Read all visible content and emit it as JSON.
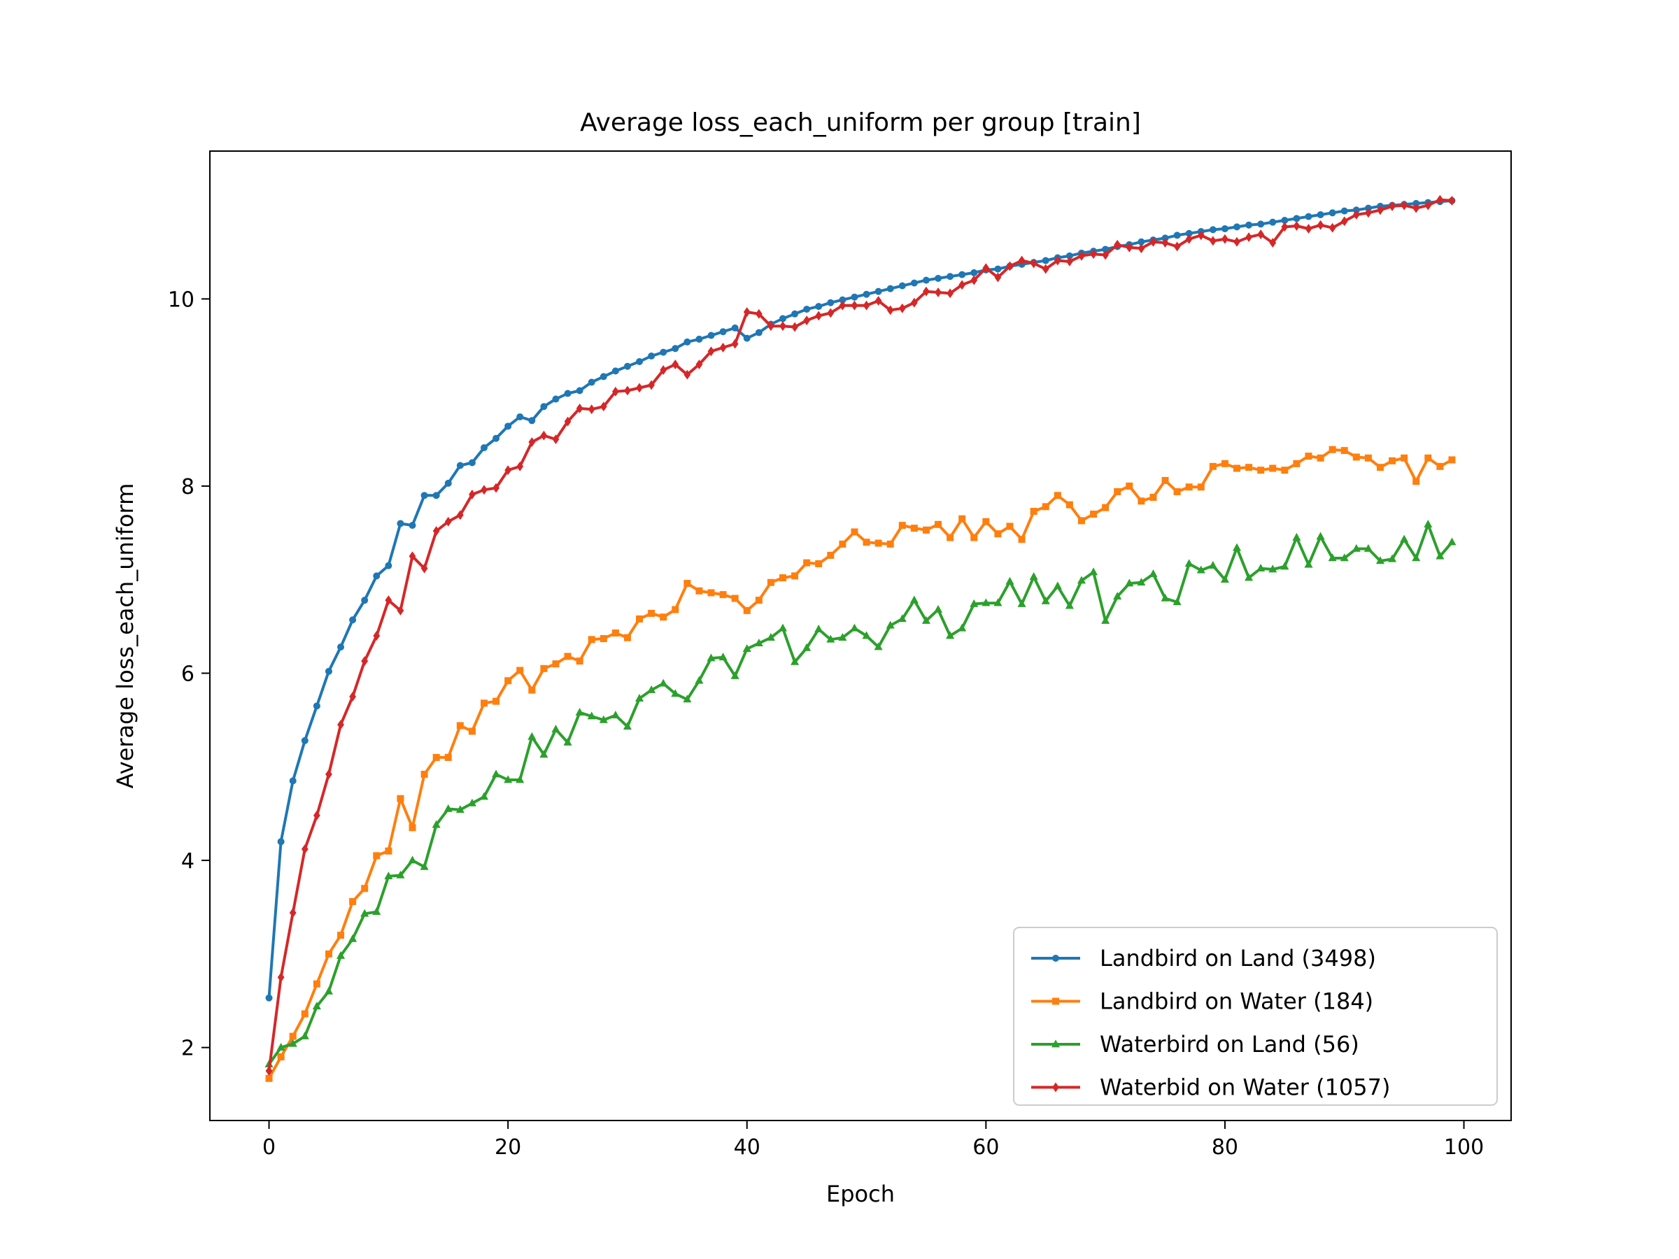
{
  "chart_data": {
    "type": "line",
    "title": "Average loss_each_uniform per group [train]",
    "xlabel": "Epoch",
    "ylabel": "Average loss_each_uniform",
    "xlim": [
      -4.95,
      103.95
    ],
    "ylim": [
      1.22,
      11.58
    ],
    "xticks": [
      0,
      20,
      40,
      60,
      80,
      100
    ],
    "yticks": [
      2,
      4,
      6,
      8,
      10
    ],
    "grid": false,
    "legend_position": "lower-right",
    "series": [
      {
        "name": "Landbird on Land (3498)",
        "color": "#1f77b4",
        "marker": "circle",
        "values": [
          2.53,
          4.2,
          4.85,
          5.28,
          5.65,
          6.02,
          6.28,
          6.57,
          6.78,
          7.04,
          7.15,
          7.6,
          7.58,
          7.9,
          7.9,
          8.03,
          8.22,
          8.25,
          8.41,
          8.51,
          8.64,
          8.74,
          8.7,
          8.85,
          8.93,
          8.99,
          9.02,
          9.11,
          9.17,
          9.23,
          9.28,
          9.33,
          9.39,
          9.43,
          9.47,
          9.54,
          9.57,
          9.61,
          9.65,
          9.69,
          9.58,
          9.64,
          9.73,
          9.79,
          9.84,
          9.89,
          9.92,
          9.96,
          9.99,
          10.02,
          10.05,
          10.08,
          10.11,
          10.14,
          10.17,
          10.2,
          10.22,
          10.24,
          10.26,
          10.28,
          10.31,
          10.32,
          10.35,
          10.37,
          10.39,
          10.41,
          10.44,
          10.46,
          10.49,
          10.51,
          10.53,
          10.56,
          10.58,
          10.61,
          10.63,
          10.65,
          10.68,
          10.7,
          10.72,
          10.74,
          10.75,
          10.77,
          10.79,
          10.8,
          10.82,
          10.84,
          10.86,
          10.88,
          10.9,
          10.92,
          10.94,
          10.95,
          10.97,
          10.99,
          11.0,
          11.01,
          11.02,
          11.03,
          11.04,
          11.05
        ]
      },
      {
        "name": "Landbird on Water (184)",
        "color": "#ff7f0e",
        "marker": "square",
        "values": [
          1.67,
          1.9,
          2.12,
          2.36,
          2.68,
          3.0,
          3.2,
          3.56,
          3.7,
          4.05,
          4.1,
          4.66,
          4.35,
          4.92,
          5.1,
          5.1,
          5.44,
          5.38,
          5.68,
          5.7,
          5.92,
          6.03,
          5.82,
          6.05,
          6.1,
          6.18,
          6.13,
          6.36,
          6.37,
          6.43,
          6.38,
          6.58,
          6.64,
          6.6,
          6.68,
          6.96,
          6.88,
          6.86,
          6.84,
          6.8,
          6.67,
          6.78,
          6.97,
          7.02,
          7.04,
          7.18,
          7.17,
          7.26,
          7.38,
          7.51,
          7.4,
          7.39,
          7.38,
          7.58,
          7.55,
          7.53,
          7.59,
          7.45,
          7.65,
          7.45,
          7.62,
          7.49,
          7.57,
          7.43,
          7.73,
          7.78,
          7.9,
          7.8,
          7.63,
          7.7,
          7.77,
          7.94,
          8.0,
          7.84,
          7.88,
          8.06,
          7.94,
          7.99,
          7.99,
          8.21,
          8.24,
          8.19,
          8.2,
          8.17,
          8.19,
          8.17,
          8.24,
          8.32,
          8.3,
          8.39,
          8.38,
          8.31,
          8.3,
          8.2,
          8.27,
          8.3,
          8.05,
          8.3,
          8.21,
          8.28
        ]
      },
      {
        "name": "Waterbird on Land (56)",
        "color": "#2ca02c",
        "marker": "triangle",
        "values": [
          1.82,
          2.0,
          2.04,
          2.12,
          2.44,
          2.6,
          2.98,
          3.16,
          3.43,
          3.45,
          3.83,
          3.84,
          4.0,
          3.93,
          4.38,
          4.55,
          4.54,
          4.61,
          4.68,
          4.92,
          4.86,
          4.86,
          5.32,
          5.13,
          5.4,
          5.26,
          5.58,
          5.54,
          5.5,
          5.55,
          5.43,
          5.73,
          5.82,
          5.89,
          5.78,
          5.72,
          5.92,
          6.16,
          6.17,
          5.97,
          6.26,
          6.32,
          6.38,
          6.48,
          6.12,
          6.27,
          6.47,
          6.36,
          6.38,
          6.48,
          6.4,
          6.28,
          6.51,
          6.58,
          6.78,
          6.56,
          6.68,
          6.4,
          6.48,
          6.74,
          6.75,
          6.75,
          6.98,
          6.74,
          7.03,
          6.77,
          6.93,
          6.72,
          6.99,
          7.08,
          6.56,
          6.82,
          6.96,
          6.97,
          7.06,
          6.8,
          6.76,
          7.17,
          7.1,
          7.15,
          7.0,
          7.34,
          7.02,
          7.12,
          7.11,
          7.14,
          7.45,
          7.16,
          7.46,
          7.23,
          7.23,
          7.33,
          7.33,
          7.2,
          7.22,
          7.43,
          7.23,
          7.59,
          7.25,
          7.4
        ]
      },
      {
        "name": "Waterbid on Water (1057)",
        "color": "#d62728",
        "marker": "diamond",
        "values": [
          1.75,
          2.75,
          3.44,
          4.12,
          4.48,
          4.92,
          5.45,
          5.75,
          6.13,
          6.4,
          6.78,
          6.67,
          7.25,
          7.12,
          7.52,
          7.62,
          7.69,
          7.91,
          7.96,
          7.98,
          8.17,
          8.21,
          8.47,
          8.54,
          8.5,
          8.69,
          8.83,
          8.82,
          8.85,
          9.01,
          9.02,
          9.05,
          9.08,
          9.24,
          9.3,
          9.19,
          9.3,
          9.44,
          9.48,
          9.52,
          9.86,
          9.84,
          9.71,
          9.71,
          9.7,
          9.77,
          9.82,
          9.85,
          9.93,
          9.93,
          9.93,
          9.98,
          9.88,
          9.9,
          9.96,
          10.08,
          10.07,
          10.06,
          10.15,
          10.2,
          10.33,
          10.23,
          10.35,
          10.41,
          10.38,
          10.32,
          10.41,
          10.4,
          10.46,
          10.48,
          10.47,
          10.58,
          10.55,
          10.54,
          10.61,
          10.6,
          10.56,
          10.64,
          10.68,
          10.62,
          10.64,
          10.61,
          10.66,
          10.69,
          10.6,
          10.77,
          10.78,
          10.75,
          10.79,
          10.76,
          10.83,
          10.9,
          10.92,
          10.95,
          10.99,
          11.0,
          10.97,
          11.0,
          11.06,
          11.05
        ]
      }
    ]
  }
}
